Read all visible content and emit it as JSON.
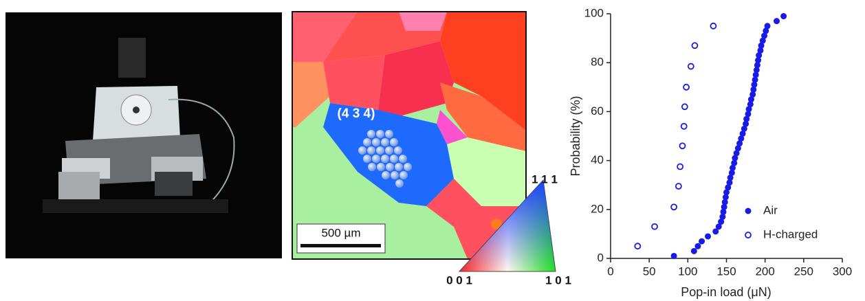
{
  "figure": {
    "grain_label": "(4 3 4)",
    "scale_bar": "500 µm",
    "triangle_labels": [
      "1 1 1",
      "0 0 1",
      "1 0 1"
    ]
  },
  "chart_data": {
    "type": "scatter",
    "xlabel": "Pop-in load (μN)",
    "ylabel": "Probability (%)",
    "xlim": [
      0,
      300
    ],
    "ylim": [
      0,
      100
    ],
    "xticks": [
      0,
      50,
      100,
      150,
      200,
      250,
      300
    ],
    "yticks": [
      0,
      20,
      40,
      60,
      80,
      100
    ],
    "legend": "lower right",
    "series": [
      {
        "name": "Air",
        "color": "#1a1ae6",
        "marker": "filled",
        "x": [
          82,
          108,
          113,
          118,
          126,
          136,
          140,
          143,
          145,
          146,
          147,
          148,
          149,
          150,
          152,
          154,
          155,
          157,
          158,
          160,
          161,
          163,
          165,
          167,
          169,
          171,
          173,
          175,
          176,
          178,
          179,
          181,
          182,
          184,
          185,
          186,
          187,
          188,
          189,
          190,
          191,
          192,
          194,
          195,
          197,
          199,
          201,
          203,
          215,
          224
        ],
        "values": [
          1,
          3,
          5,
          7,
          9,
          11,
          13,
          15,
          17,
          19,
          21,
          23,
          25,
          27,
          29,
          31,
          33,
          35,
          37,
          39,
          41,
          43,
          45,
          47,
          49,
          51,
          53,
          55,
          57,
          59,
          61,
          63,
          65,
          67,
          69,
          71,
          73,
          75,
          77,
          79,
          81,
          83,
          85,
          87,
          89,
          91,
          93,
          95,
          97,
          99
        ]
      },
      {
        "name": "H-charged",
        "color": "#1a1ae6",
        "marker": "open",
        "x": [
          35,
          57,
          82,
          88,
          90,
          93,
          95,
          96,
          98,
          104,
          109,
          133
        ],
        "values": [
          5,
          13,
          21,
          29.5,
          37.5,
          46,
          54,
          62,
          70,
          78.5,
          87,
          95
        ]
      }
    ]
  }
}
